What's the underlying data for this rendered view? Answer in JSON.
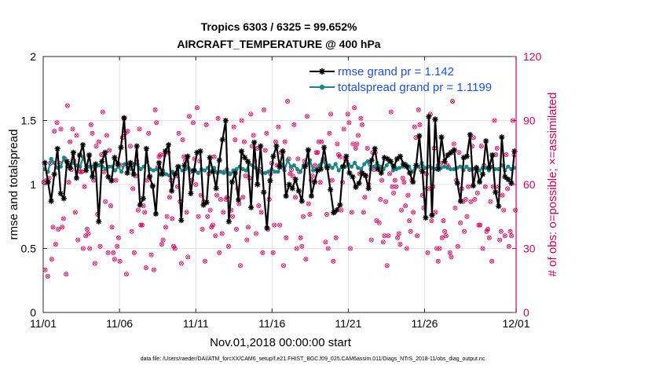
{
  "chart_data": {
    "type": "line",
    "title_line1": "Tropics 6303 / 6325 = 99.652%",
    "title_line2": "AIRCRAFT_TEMPERATURE @ 400 hPa",
    "xlabel": "Nov.01,2018 00:00:00 start",
    "ylabel_left": "rmse and totalspread",
    "ylabel_right": "# of obs: o=possible; ×=assimilated",
    "footnote": "data file: /Users/raeder/DAI/ATM_forcXX/CAM6_setup/f.e21.FHIST_BGC.f09_025.CAM6assim.011/Diags_NTrS_2018-11/obs_diag_output.nc",
    "x_range": [
      0,
      31
    ],
    "x_ticks": [
      0,
      5,
      10,
      15,
      20,
      25,
      31
    ],
    "x_tick_labels": [
      "11/01",
      "11/06",
      "11/11",
      "11/16",
      "11/21",
      "11/26",
      "12/01"
    ],
    "ylim_left": [
      0,
      2
    ],
    "y_ticks_left": [
      0,
      0.5,
      1,
      1.5,
      2
    ],
    "y_tick_labels_left": [
      "0",
      "0.5",
      "1",
      "1.5",
      "2"
    ],
    "ylim_right": [
      0,
      120
    ],
    "y_ticks_right": [
      0,
      30,
      60,
      90,
      120
    ],
    "y_tick_labels_right": [
      "0",
      "30",
      "60",
      "90",
      "120"
    ],
    "grid": true,
    "legend_position": "top-right",
    "colors": {
      "rmse": "#000000",
      "totalspread": "#1a8787",
      "obs": "#d6005c",
      "legend_text": "#1f4fe0",
      "grid": "#e3e3e3"
    },
    "series": [
      {
        "name": "rmse grand pr = 1.142",
        "axis": "left",
        "marker": "star",
        "values": [
          1.17,
          1.02,
          0.87,
          1.08,
          1.28,
          0.93,
          0.89,
          1.18,
          1.13,
          1.25,
          1.05,
          1.23,
          1.31,
          1.11,
          1.23,
          1.06,
          1.16,
          0.71,
          1.18,
          1.25,
          1.06,
          1.03,
          1.21,
          1.16,
          1.29,
          1.52,
          1.09,
          1.17,
          1.08,
          1.3,
          0.84,
          0.89,
          1.28,
          1.06,
          0.99,
          0.77,
          1.17,
          1.08,
          1.26,
          1.31,
          0.95,
          1.08,
          1.14,
          0.72,
          1.15,
          1.22,
          0.93,
          1.11,
          1.25,
          1.26,
          0.84,
          0.86,
          1.21,
          1.1,
          0.97,
          1.19,
          1.35,
          1.5,
          0.71,
          1.02,
          1.09,
          0.88,
          1.26,
          1.21,
          1.18,
          0.82,
          1.33,
          1.0,
          1.3,
          0.94,
          0.66,
          1.03,
          1.22,
          1.3,
          1.14,
          1.26,
          0.91,
          1.0,
          0.97,
          1.04,
          0.95,
          0.87,
          1.14,
          1.27,
          0.91,
          1.02,
          1.11,
          1.12,
          1.29,
          1.13,
          0.96,
          0.78,
          0.8,
          0.84,
          1.14,
          1.22,
          1.09,
          1.06,
          0.98,
          1.01,
          1.09,
          1.07,
          0.97,
          1.19,
          1.28,
          1.12,
          1.09,
          1.21,
          1.2,
          1.18,
          1.14,
          1.2,
          1.22,
          1.16,
          1.14,
          1.09,
          1.02,
          1.15,
          1.38,
          1.1,
          0.74,
          1.53,
          0.76,
          1.51,
          1.12,
          1.37,
          1.18,
          1.23,
          1.25,
          1.27,
          1.01,
          0.87,
          1.21,
          1.22,
          1.39,
          0.99,
          1.13,
          1.02,
          1.08,
          1.34,
          1.13,
          1.23,
          0.94,
          0.83,
          1.37,
          1.06,
          1.04,
          1.01,
          1.26
        ]
      },
      {
        "name": "totalspread grand pr = 1.1199",
        "axis": "left",
        "marker": "circle",
        "values": [
          1.12,
          1.1,
          1.2,
          1.17,
          1.13,
          1.14,
          1.21,
          1.14,
          1.16,
          1.17,
          1.15,
          1.14,
          1.21,
          1.14,
          1.14,
          1.14,
          1.14,
          1.15,
          1.14,
          1.12,
          1.14,
          1.14,
          1.11,
          1.14,
          1.1,
          1.16,
          1.13,
          1.12,
          1.16,
          1.16,
          1.12,
          1.14,
          1.18,
          1.12,
          1.11,
          1.12,
          1.08,
          1.11,
          1.08,
          1.07,
          1.1,
          1.08,
          1.14,
          1.11,
          1.12,
          1.13,
          1.11,
          1.11,
          1.09,
          1.12,
          1.11,
          1.13,
          1.1,
          1.13,
          1.09,
          1.1,
          1.09,
          1.12,
          1.08,
          1.11,
          1.12,
          1.14,
          1.12,
          1.11,
          1.16,
          1.15,
          1.13,
          1.1,
          1.09,
          1.09,
          1.1,
          1.12,
          1.1,
          1.1,
          1.16,
          1.11,
          1.19,
          1.14,
          1.15,
          1.12,
          1.1,
          1.15,
          1.16,
          1.19,
          1.11,
          1.12,
          1.15,
          1.2,
          1.14,
          1.15,
          1.13,
          1.16,
          1.11,
          1.14,
          1.14,
          1.16,
          1.14,
          1.17,
          1.13,
          1.12,
          1.16,
          1.18,
          1.12,
          1.14,
          1.17,
          1.14,
          1.12,
          1.15,
          1.19,
          1.11,
          1.12,
          1.13,
          1.14,
          1.16,
          1.14,
          1.1,
          1.13,
          1.14,
          1.17,
          1.13,
          1.14,
          1.13,
          1.12,
          1.15,
          1.13,
          1.14,
          1.13,
          1.12,
          1.12,
          1.13,
          1.14,
          1.11,
          1.14,
          1.12,
          1.12,
          1.12,
          1.11,
          1.13,
          1.13,
          1.11,
          1.14,
          1.12,
          1.12,
          1.15,
          1.11,
          1.14,
          1.12,
          1.13
        ]
      },
      {
        "name": "obs possible/assimilated",
        "axis": "right",
        "marker": "o-x",
        "values": [
          61,
          20,
          62,
          17,
          63,
          70,
          25,
          40,
          85,
          32,
          89,
          39,
          70,
          86,
          40,
          44,
          72,
          18,
          97,
          61,
          80,
          67,
          86,
          71,
          47,
          83,
          34,
          68,
          66,
          66,
          30,
          59,
          36,
          39,
          37,
          30,
          88,
          84,
          62,
          23,
          78,
          46,
          80,
          31,
          74,
          94,
          66,
          52,
          83,
          28,
          76,
          50,
          40,
          28,
          25,
          62,
          31,
          35,
          24,
          69,
          82,
          91,
          84,
          18,
          85,
          69,
          78,
          38,
          58,
          28,
          64,
          71,
          48,
          86,
          41,
          41,
          50,
          47,
          21,
          62,
          84,
          64,
          27,
          59,
          20,
          95,
          89,
          68,
          73,
          74,
          32,
          34,
          74,
          40,
          45,
          75,
          54,
          62,
          44,
          31,
          30,
          64,
          59,
          84,
          52,
          23,
          81,
          73,
          71,
          47,
          26,
          92,
          66,
          62,
          89,
          72,
          60,
          96,
          45,
          71,
          55,
          39,
          52,
          24,
          88,
          45,
          65,
          48,
          40,
          41,
          73,
          36,
          55,
          91,
          28,
          53,
          37,
          47,
          66,
          53,
          54,
          31,
          65,
          48,
          45,
          87,
          81,
          39,
          58,
          51,
          22,
          90,
          54,
          80,
          64,
          34,
          40,
          63,
          93,
          78,
          83,
          71,
          37,
          77,
          50,
          67,
          47,
          28,
          95,
          76,
          84,
          39,
          53,
          65,
          70,
          28,
          41,
          80,
          69,
          87,
          41,
          75,
          68,
          22,
          80,
          35,
          99,
          72,
          65,
          67,
          64,
          88,
          54,
          30,
          72,
          66,
          35,
          31,
          45,
          71,
          25,
          92,
          51,
          46,
          62,
          64,
          67,
          69,
          75,
          75,
          80,
          61,
          80,
          71,
          72,
          33,
          46,
          30,
          84,
          93,
          62,
          24,
          47,
          35,
          79,
          74,
          73,
          48,
          61,
          86,
          72,
          71,
          93,
          89,
          30,
          47,
          79,
          96,
          77,
          79,
          83,
          65,
          91,
          88,
          47,
          54,
          64,
          77,
          60,
          70,
          34,
          75,
          67,
          75,
          43,
          68,
          42,
          53,
          62,
          33,
          36,
          52,
          22,
          36,
          65,
          94,
          59,
          56,
          62,
          59,
          35,
          37,
          32,
          48,
          63,
          61,
          50,
          30,
          55,
          43,
          38,
          62,
          47,
          87,
          82,
          36,
          95,
          88,
          67,
          55,
          49,
          58,
          65,
          28,
          58,
          93,
          43,
          59,
          77,
          47,
          30,
          24,
          30,
          70,
          35,
          43,
          38,
          36,
          69,
          68,
          28,
          26,
          99,
          79,
          49,
          62,
          31,
          75,
          42,
          58,
          52,
          38,
          53,
          45,
          59,
          67,
          52,
          78,
          82,
          53,
          68,
          56,
          41,
          41,
          78,
          30,
          69,
          59,
          38,
          39,
          35,
          52,
          24,
          59,
          90,
          74,
          77,
          59,
          34,
          38,
          55,
          48,
          36,
          74,
          58,
          31,
          38,
          36,
          90,
          74,
          48
        ]
      }
    ]
  }
}
